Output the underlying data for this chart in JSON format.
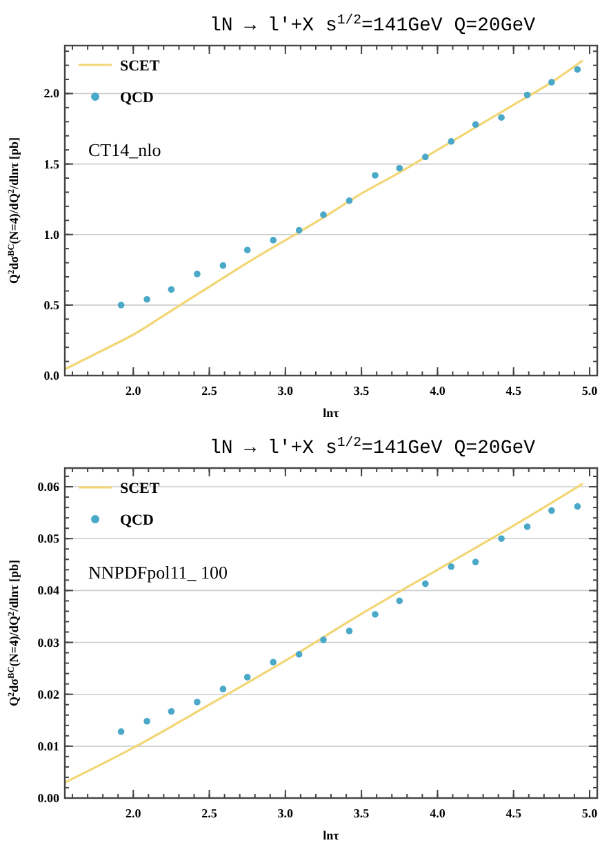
{
  "chart_data": [
    {
      "type": "scatter",
      "title": "lN → l'+X  s$^{1/2}$=141GeV  Q=20GeV",
      "xlabel": "lnτ",
      "ylabel": "Q$^{2}$dσ$^{BC}$(N=4)/dQ$^{2}$/dlnτ [pb]",
      "annotations": [
        "CT14_nlo"
      ],
      "xlim": [
        1.55,
        5.05
      ],
      "ylim": [
        0,
        2.34
      ],
      "xticks": [
        {
          "value": 2,
          "label": "2.0"
        },
        {
          "value": 2.5,
          "label": "2.5"
        },
        {
          "value": 3,
          "label": "3.0"
        },
        {
          "value": 3.5,
          "label": "3.5"
        },
        {
          "value": 4,
          "label": "4.0"
        },
        {
          "value": 4.5,
          "label": "4.5"
        },
        {
          "value": 5,
          "label": "5.0"
        }
      ],
      "yticks": [
        {
          "value": 0,
          "label": "0.0"
        },
        {
          "value": 0.5,
          "label": "0.5"
        },
        {
          "value": 1,
          "label": "1.0"
        },
        {
          "value": 1.5,
          "label": "1.5"
        },
        {
          "value": 2,
          "label": "2.0"
        }
      ],
      "grid": "y",
      "legend": "top left",
      "series": [
        {
          "name": "SCET",
          "type": "line",
          "color": "#f2d675",
          "line_style": "solid",
          "x": [
            1.56,
            1.8,
            2.0,
            2.25,
            2.5,
            2.75,
            3.0,
            3.25,
            3.5,
            3.75,
            4.0,
            4.25,
            4.5,
            4.75,
            4.95
          ],
          "values": [
            0.05,
            0.18,
            0.29,
            0.46,
            0.63,
            0.8,
            0.96,
            1.12,
            1.29,
            1.44,
            1.6,
            1.76,
            1.92,
            2.08,
            2.23
          ]
        },
        {
          "name": "QCD",
          "color": "#4aa8c8",
          "marker": "circle",
          "x": [
            1.92,
            2.09,
            2.25,
            2.42,
            2.59,
            2.75,
            2.92,
            3.09,
            3.25,
            3.42,
            3.59,
            3.75,
            3.92,
            4.09,
            4.25,
            4.42,
            4.59,
            4.75,
            4.92
          ],
          "values": [
            0.5,
            0.54,
            0.61,
            0.72,
            0.78,
            0.89,
            0.96,
            1.03,
            1.14,
            1.24,
            1.42,
            1.47,
            1.55,
            1.66,
            1.78,
            1.83,
            1.99,
            2.08,
            2.17
          ]
        }
      ]
    },
    {
      "type": "scatter",
      "title": "lN → l'+X  s$^{1/2}$=141GeV  Q=20GeV",
      "xlabel": "lnτ",
      "ylabel": "Q$^{2}$dσ$^{BC}$(N=4)/dQ$^{2}$/dlnτ [pb]",
      "annotations": [
        "NNPDFpol11_ 100"
      ],
      "xlim": [
        1.55,
        5.05
      ],
      "ylim": [
        0,
        0.0636
      ],
      "xticks": [
        {
          "value": 2,
          "label": "2.0"
        },
        {
          "value": 2.5,
          "label": "2.5"
        },
        {
          "value": 3,
          "label": "3.0"
        },
        {
          "value": 3.5,
          "label": "3.5"
        },
        {
          "value": 4,
          "label": "4.0"
        },
        {
          "value": 4.5,
          "label": "4.5"
        },
        {
          "value": 5,
          "label": "5.0"
        }
      ],
      "yticks": [
        {
          "value": 0,
          "label": "0.00"
        },
        {
          "value": 0.01,
          "label": "0.01"
        },
        {
          "value": 0.02,
          "label": "0.02"
        },
        {
          "value": 0.03,
          "label": "0.03"
        },
        {
          "value": 0.04,
          "label": "0.04"
        },
        {
          "value": 0.05,
          "label": "0.05"
        },
        {
          "value": 0.06,
          "label": "0.06"
        }
      ],
      "grid": "y",
      "legend": "top left",
      "series": [
        {
          "name": "SCET",
          "type": "line",
          "color": "#f2d675",
          "line_style": "solid",
          "x": [
            1.55,
            2.0,
            2.5,
            3.0,
            3.5,
            4.0,
            4.5,
            4.95
          ],
          "values": [
            0.003,
            0.0097,
            0.018,
            0.0265,
            0.0355,
            0.044,
            0.0525,
            0.0605
          ]
        },
        {
          "name": "QCD",
          "color": "#4aa8c8",
          "marker": "circle",
          "x": [
            1.92,
            2.09,
            2.25,
            2.42,
            2.59,
            2.75,
            2.92,
            3.09,
            3.25,
            3.42,
            3.59,
            3.75,
            3.92,
            4.09,
            4.25,
            4.42,
            4.59,
            4.75,
            4.92
          ],
          "values": [
            0.0128,
            0.0148,
            0.0167,
            0.0185,
            0.021,
            0.0233,
            0.0262,
            0.0277,
            0.0305,
            0.0322,
            0.0354,
            0.038,
            0.0413,
            0.0446,
            0.0455,
            0.05,
            0.0523,
            0.0554,
            0.0562
          ]
        }
      ]
    }
  ]
}
